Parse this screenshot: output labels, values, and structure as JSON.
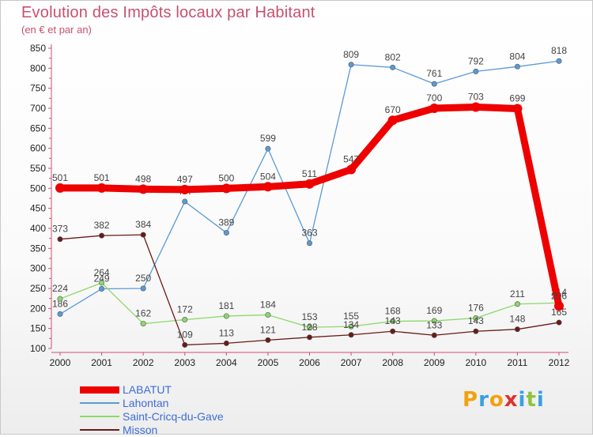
{
  "page": {
    "title": "Evolution des Impôts locaux par Habitant",
    "subtitle": "(en € et par an)"
  },
  "logo": {
    "letters": [
      "P",
      "r",
      "o",
      "x",
      "i",
      "t",
      "i"
    ],
    "colors": [
      "#f2a20e",
      "#3aa0e0",
      "#f2a20e",
      "#e03030",
      "#3aa0e0",
      "#8cc43c",
      "#3aa0e0"
    ]
  },
  "chart_data": {
    "type": "line",
    "x": [
      "2000",
      "2001",
      "2002",
      "2003",
      "2004",
      "2005",
      "2006",
      "2007",
      "2008",
      "2009",
      "2010",
      "2011",
      "2012"
    ],
    "ylim": [
      100,
      850
    ],
    "yticks": [
      100,
      150,
      200,
      250,
      300,
      350,
      400,
      450,
      500,
      550,
      600,
      650,
      700,
      750,
      800,
      850
    ],
    "grid": false,
    "legend_position": "bottom-left",
    "series": [
      {
        "name": "LABATUT",
        "color": "#ee0000",
        "width": "thick",
        "values": [
          501,
          501,
          498,
          497,
          500,
          504,
          511,
          547,
          670,
          700,
          703,
          699,
          206
        ]
      },
      {
        "name": "Lahontan",
        "color": "#5a9ad8",
        "width": "thin",
        "values": [
          186,
          249,
          250,
          467,
          389,
          599,
          363,
          809,
          802,
          761,
          792,
          804,
          818
        ]
      },
      {
        "name": "Saint-Cricq-du-Gave",
        "color": "#8cd86c",
        "width": "thin",
        "values": [
          224,
          264,
          162,
          172,
          181,
          184,
          153,
          155,
          168,
          169,
          176,
          211,
          214
        ]
      },
      {
        "name": "Misson",
        "color": "#6a1a1a",
        "width": "thin",
        "values": [
          373,
          382,
          384,
          109,
          113,
          121,
          128,
          134,
          143,
          133,
          143,
          148,
          165
        ]
      }
    ]
  }
}
